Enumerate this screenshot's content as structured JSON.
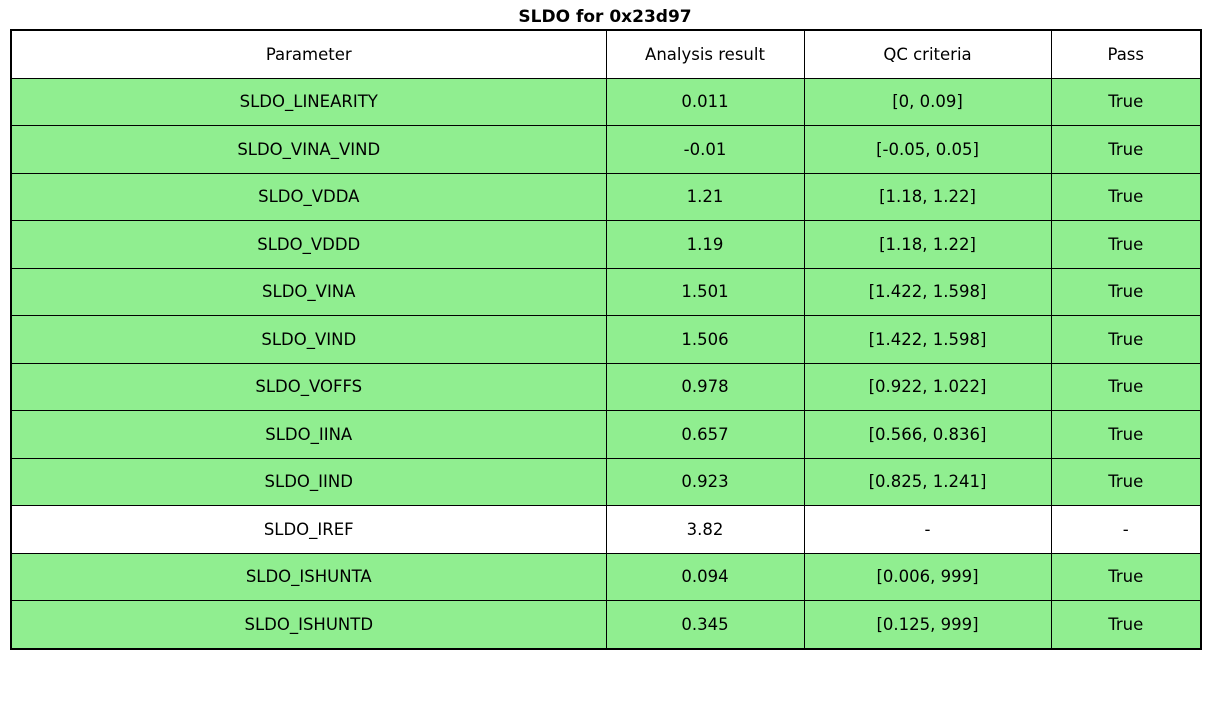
{
  "title": "SLDO for 0x23d97",
  "colors": {
    "pass_row_green": "#90ee90",
    "neutral_row_white": "#ffffff",
    "border": "#000000",
    "text": "#000000"
  },
  "chart_data": {
    "type": "table",
    "title": "SLDO for 0x23d97",
    "columns": [
      "Parameter",
      "Analysis result",
      "QC criteria",
      "Pass"
    ],
    "rows": [
      {
        "parameter": "SLDO_LINEARITY",
        "result": "0.011",
        "qc": "[0, 0.09]",
        "pass": "True",
        "highlight": true
      },
      {
        "parameter": "SLDO_VINA_VIND",
        "result": "-0.01",
        "qc": "[-0.05, 0.05]",
        "pass": "True",
        "highlight": true
      },
      {
        "parameter": "SLDO_VDDA",
        "result": "1.21",
        "qc": "[1.18, 1.22]",
        "pass": "True",
        "highlight": true
      },
      {
        "parameter": "SLDO_VDDD",
        "result": "1.19",
        "qc": "[1.18, 1.22]",
        "pass": "True",
        "highlight": true
      },
      {
        "parameter": "SLDO_VINA",
        "result": "1.501",
        "qc": "[1.422, 1.598]",
        "pass": "True",
        "highlight": true
      },
      {
        "parameter": "SLDO_VIND",
        "result": "1.506",
        "qc": "[1.422, 1.598]",
        "pass": "True",
        "highlight": true
      },
      {
        "parameter": "SLDO_VOFFS",
        "result": "0.978",
        "qc": "[0.922, 1.022]",
        "pass": "True",
        "highlight": true
      },
      {
        "parameter": "SLDO_IINA",
        "result": "0.657",
        "qc": "[0.566, 0.836]",
        "pass": "True",
        "highlight": true
      },
      {
        "parameter": "SLDO_IIND",
        "result": "0.923",
        "qc": "[0.825, 1.241]",
        "pass": "True",
        "highlight": true
      },
      {
        "parameter": "SLDO_IREF",
        "result": "3.82",
        "qc": "-",
        "pass": "-",
        "highlight": false
      },
      {
        "parameter": "SLDO_ISHUNTA",
        "result": "0.094",
        "qc": "[0.006, 999]",
        "pass": "True",
        "highlight": true
      },
      {
        "parameter": "SLDO_ISHUNTD",
        "result": "0.345",
        "qc": "[0.125, 999]",
        "pass": "True",
        "highlight": true
      }
    ]
  }
}
